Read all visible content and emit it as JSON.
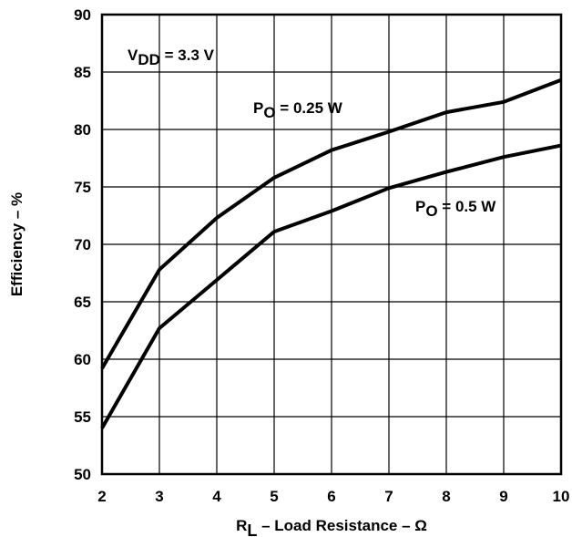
{
  "chart_data": {
    "type": "line",
    "xlabel": {
      "main": "R",
      "sub": "L",
      "rest": " – Load Resistance – Ω"
    },
    "ylabel": "Efficiency – %",
    "xlim": [
      2,
      10
    ],
    "ylim": [
      50,
      90
    ],
    "x_ticks": [
      "2",
      "3",
      "4",
      "5",
      "6",
      "7",
      "8",
      "9",
      "10"
    ],
    "y_ticks": [
      "50",
      "55",
      "60",
      "65",
      "70",
      "75",
      "80",
      "85",
      "90"
    ],
    "grid": true,
    "annotations": [
      {
        "main": "V",
        "sub": "DD",
        "rest": " = 3.3 V"
      }
    ],
    "series": [
      {
        "label": {
          "main": "P",
          "sub": "O",
          "rest": " = 0.25 W"
        },
        "x": [
          2,
          3,
          4,
          5,
          6,
          7,
          8,
          9,
          10
        ],
        "y": [
          59.2,
          67.8,
          72.3,
          75.8,
          78.2,
          79.8,
          81.5,
          82.4,
          84.3
        ]
      },
      {
        "label": {
          "main": "P",
          "sub": "O",
          "rest": " = 0.5 W"
        },
        "x": [
          2,
          3,
          4,
          5,
          6,
          7,
          8,
          9,
          10
        ],
        "y": [
          54.0,
          62.7,
          66.9,
          71.1,
          72.9,
          74.9,
          76.3,
          77.6,
          78.6
        ]
      }
    ]
  }
}
